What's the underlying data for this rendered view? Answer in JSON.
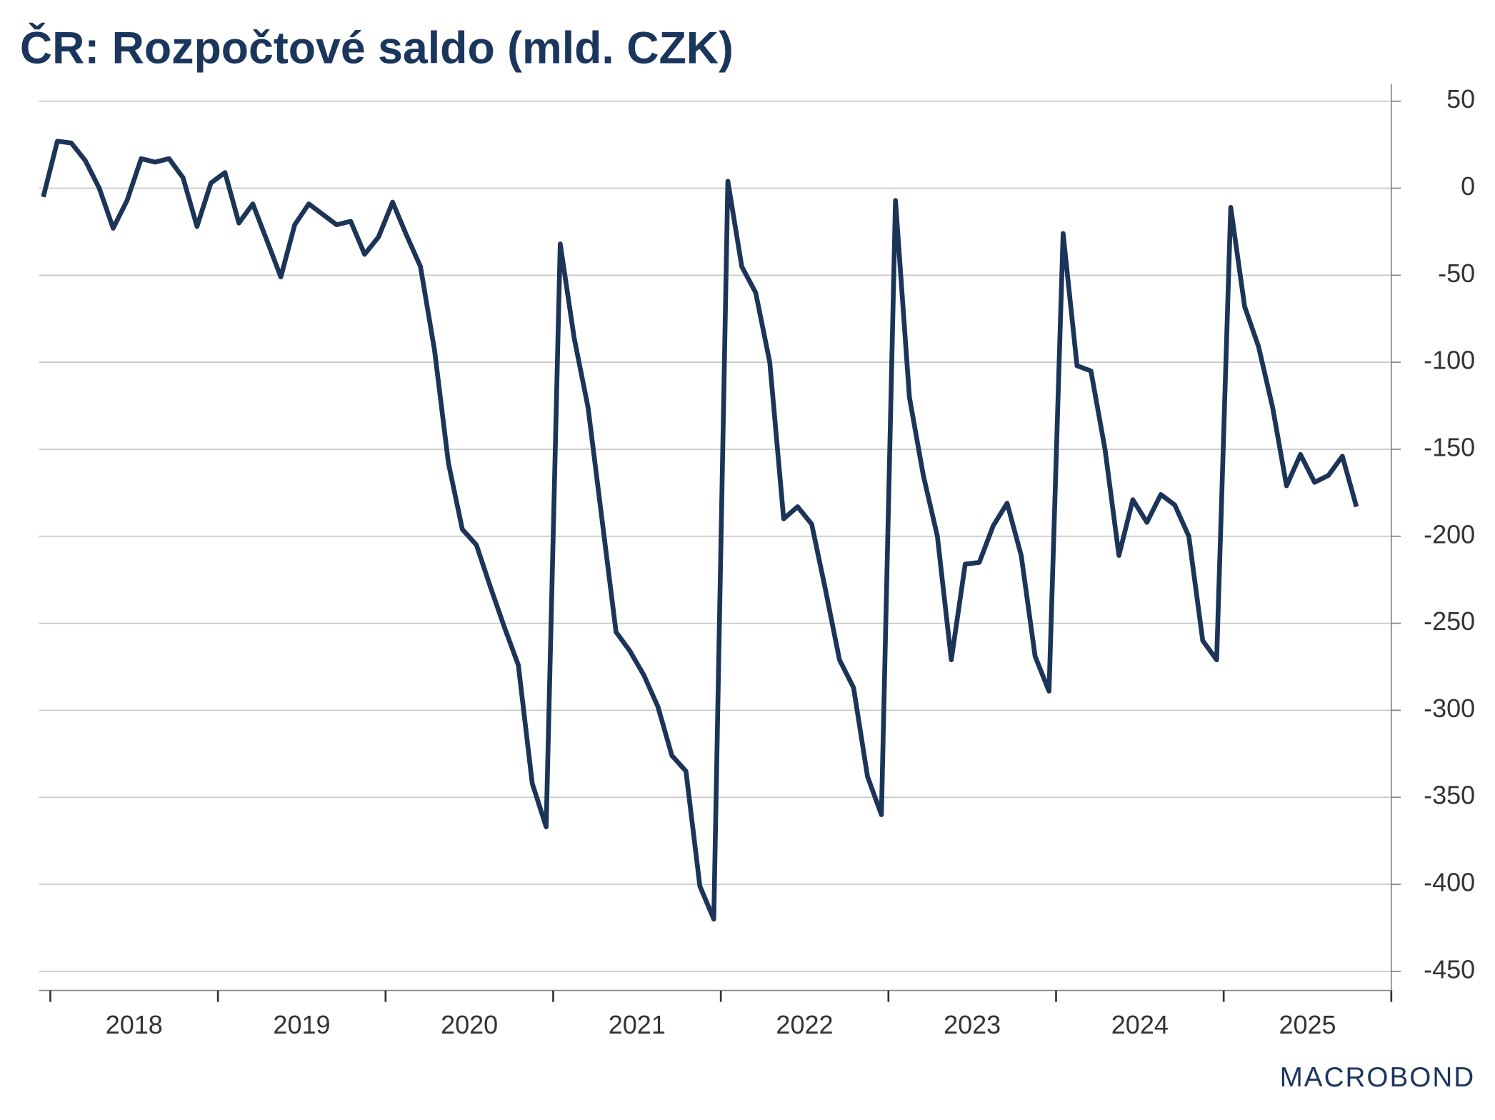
{
  "chart_data": {
    "type": "line",
    "title": "ČR: Rozpočtové saldo (mld. CZK)",
    "watermark": "MACROBOND",
    "x": [
      2017.958,
      2018.042,
      2018.125,
      2018.208,
      2018.292,
      2018.375,
      2018.458,
      2018.542,
      2018.625,
      2018.708,
      2018.792,
      2018.875,
      2018.958,
      2019.042,
      2019.125,
      2019.208,
      2019.292,
      2019.375,
      2019.458,
      2019.542,
      2019.625,
      2019.708,
      2019.792,
      2019.875,
      2019.958,
      2020.042,
      2020.125,
      2020.208,
      2020.292,
      2020.375,
      2020.458,
      2020.542,
      2020.625,
      2020.708,
      2020.792,
      2020.875,
      2020.958,
      2021.042,
      2021.125,
      2021.208,
      2021.292,
      2021.375,
      2021.458,
      2021.542,
      2021.625,
      2021.708,
      2021.792,
      2021.875,
      2021.958,
      2022.042,
      2022.125,
      2022.208,
      2022.292,
      2022.375,
      2022.458,
      2022.542,
      2022.625,
      2022.708,
      2022.792,
      2022.875,
      2022.958,
      2023.042,
      2023.125,
      2023.208,
      2023.292,
      2023.375,
      2023.458,
      2023.542,
      2023.625,
      2023.708,
      2023.792,
      2023.875,
      2023.958,
      2024.042,
      2024.125,
      2024.208,
      2024.292,
      2024.375,
      2024.458,
      2024.542,
      2024.625,
      2024.708,
      2024.792,
      2024.875,
      2024.958,
      2025.042,
      2025.125,
      2025.208,
      2025.292,
      2025.375,
      2025.458,
      2025.542,
      2025.625,
      2025.708,
      2025.792
    ],
    "series": [
      {
        "color": "#1c3458",
        "values": [
          -5,
          27,
          26,
          16,
          0,
          -23,
          -7,
          17,
          15,
          17,
          6,
          -22,
          3,
          9,
          -20,
          -9,
          -30,
          -51,
          -21,
          -9,
          -15,
          -21,
          -19,
          -38,
          -28,
          -8,
          -27,
          -45,
          -93,
          -158,
          -196,
          -205,
          -229,
          -252,
          -274,
          -342,
          -367,
          -32,
          -86,
          -126,
          -191,
          -255,
          -266,
          -280,
          -298,
          -326,
          -335,
          -401,
          -420,
          4,
          -45,
          -60,
          -100,
          -190,
          -183,
          -193,
          -231,
          -271,
          -287,
          -338,
          -360,
          -7,
          -120,
          -165,
          -200,
          -271,
          -216,
          -215,
          -194,
          -181,
          -211,
          -269,
          -289,
          -26,
          -102,
          -105,
          -150,
          -211,
          -179,
          -192,
          -176,
          -182,
          -200,
          -260,
          -271,
          -11,
          -68,
          -91,
          -126,
          -171,
          -153,
          -169,
          -165,
          -154,
          -183
        ]
      }
    ],
    "xlim": [
      2017.932,
      2026
    ],
    "xticks": [
      {
        "value": 2018,
        "label": "2018"
      },
      {
        "value": 2019,
        "label": "2019"
      },
      {
        "value": 2020,
        "label": "2020"
      },
      {
        "value": 2021,
        "label": "2021"
      },
      {
        "value": 2022,
        "label": "2022"
      },
      {
        "value": 2023,
        "label": "2023"
      },
      {
        "value": 2024,
        "label": "2024"
      },
      {
        "value": 2025,
        "label": "2025"
      }
    ],
    "ylim": [
      -461,
      60
    ],
    "yticks": [
      50,
      0,
      -50,
      -100,
      -150,
      -200,
      -250,
      -300,
      -350,
      -400,
      -450
    ],
    "grid": true
  }
}
